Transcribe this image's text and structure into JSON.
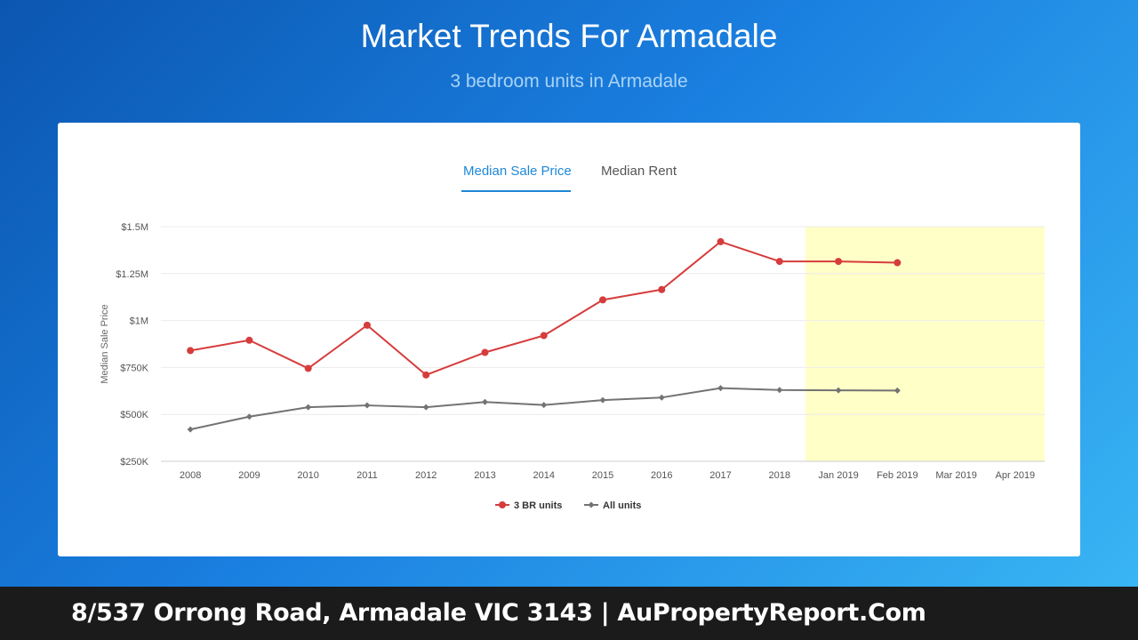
{
  "header": {
    "title": "Market Trends For Armadale",
    "subtitle": "3 bedroom units in Armadale"
  },
  "tabs": [
    {
      "label": "Median Sale Price",
      "active": true
    },
    {
      "label": "Median Rent",
      "active": false
    }
  ],
  "footer": {
    "text": "8/537 Orrong Road, Armadale VIC 3143 | AuPropertyReport.Com"
  },
  "colors": {
    "series_3br": "#d63c3c",
    "series_all": "#737373",
    "forecast_band": "#ffffc8",
    "tab_active": "#1e88d6"
  },
  "chart_data": {
    "type": "line",
    "title": "",
    "xlabel": "",
    "ylabel": "Median Sale Price",
    "categories": [
      "2008",
      "2009",
      "2010",
      "2011",
      "2012",
      "2013",
      "2014",
      "2015",
      "2016",
      "2017",
      "2018",
      "Jan 2019",
      "Feb 2019",
      "Mar 2019",
      "Apr 2019"
    ],
    "yticks": [
      {
        "value": 250000,
        "label": "$250K"
      },
      {
        "value": 500000,
        "label": "$500K"
      },
      {
        "value": 750000,
        "label": "$750K"
      },
      {
        "value": 1000000,
        "label": "$1M"
      },
      {
        "value": 1250000,
        "label": "$1.25M"
      },
      {
        "value": 1500000,
        "label": "$1.5M"
      }
    ],
    "ylim": [
      250000,
      1500000
    ],
    "grid": true,
    "legend_position": "bottom-center",
    "highlight_band": {
      "from_category": "Jan 2019",
      "to_category": "Apr 2019"
    },
    "series": [
      {
        "name": "3 BR units",
        "values": [
          840000,
          895000,
          745000,
          975000,
          710000,
          830000,
          920000,
          1110000,
          1165000,
          1420000,
          1315000,
          1315000,
          1308000,
          null,
          null
        ]
      },
      {
        "name": "All units",
        "values": [
          420000,
          488000,
          538000,
          548000,
          538000,
          566000,
          550000,
          576000,
          590000,
          640000,
          630000,
          628000,
          627000,
          null,
          null
        ]
      }
    ]
  }
}
